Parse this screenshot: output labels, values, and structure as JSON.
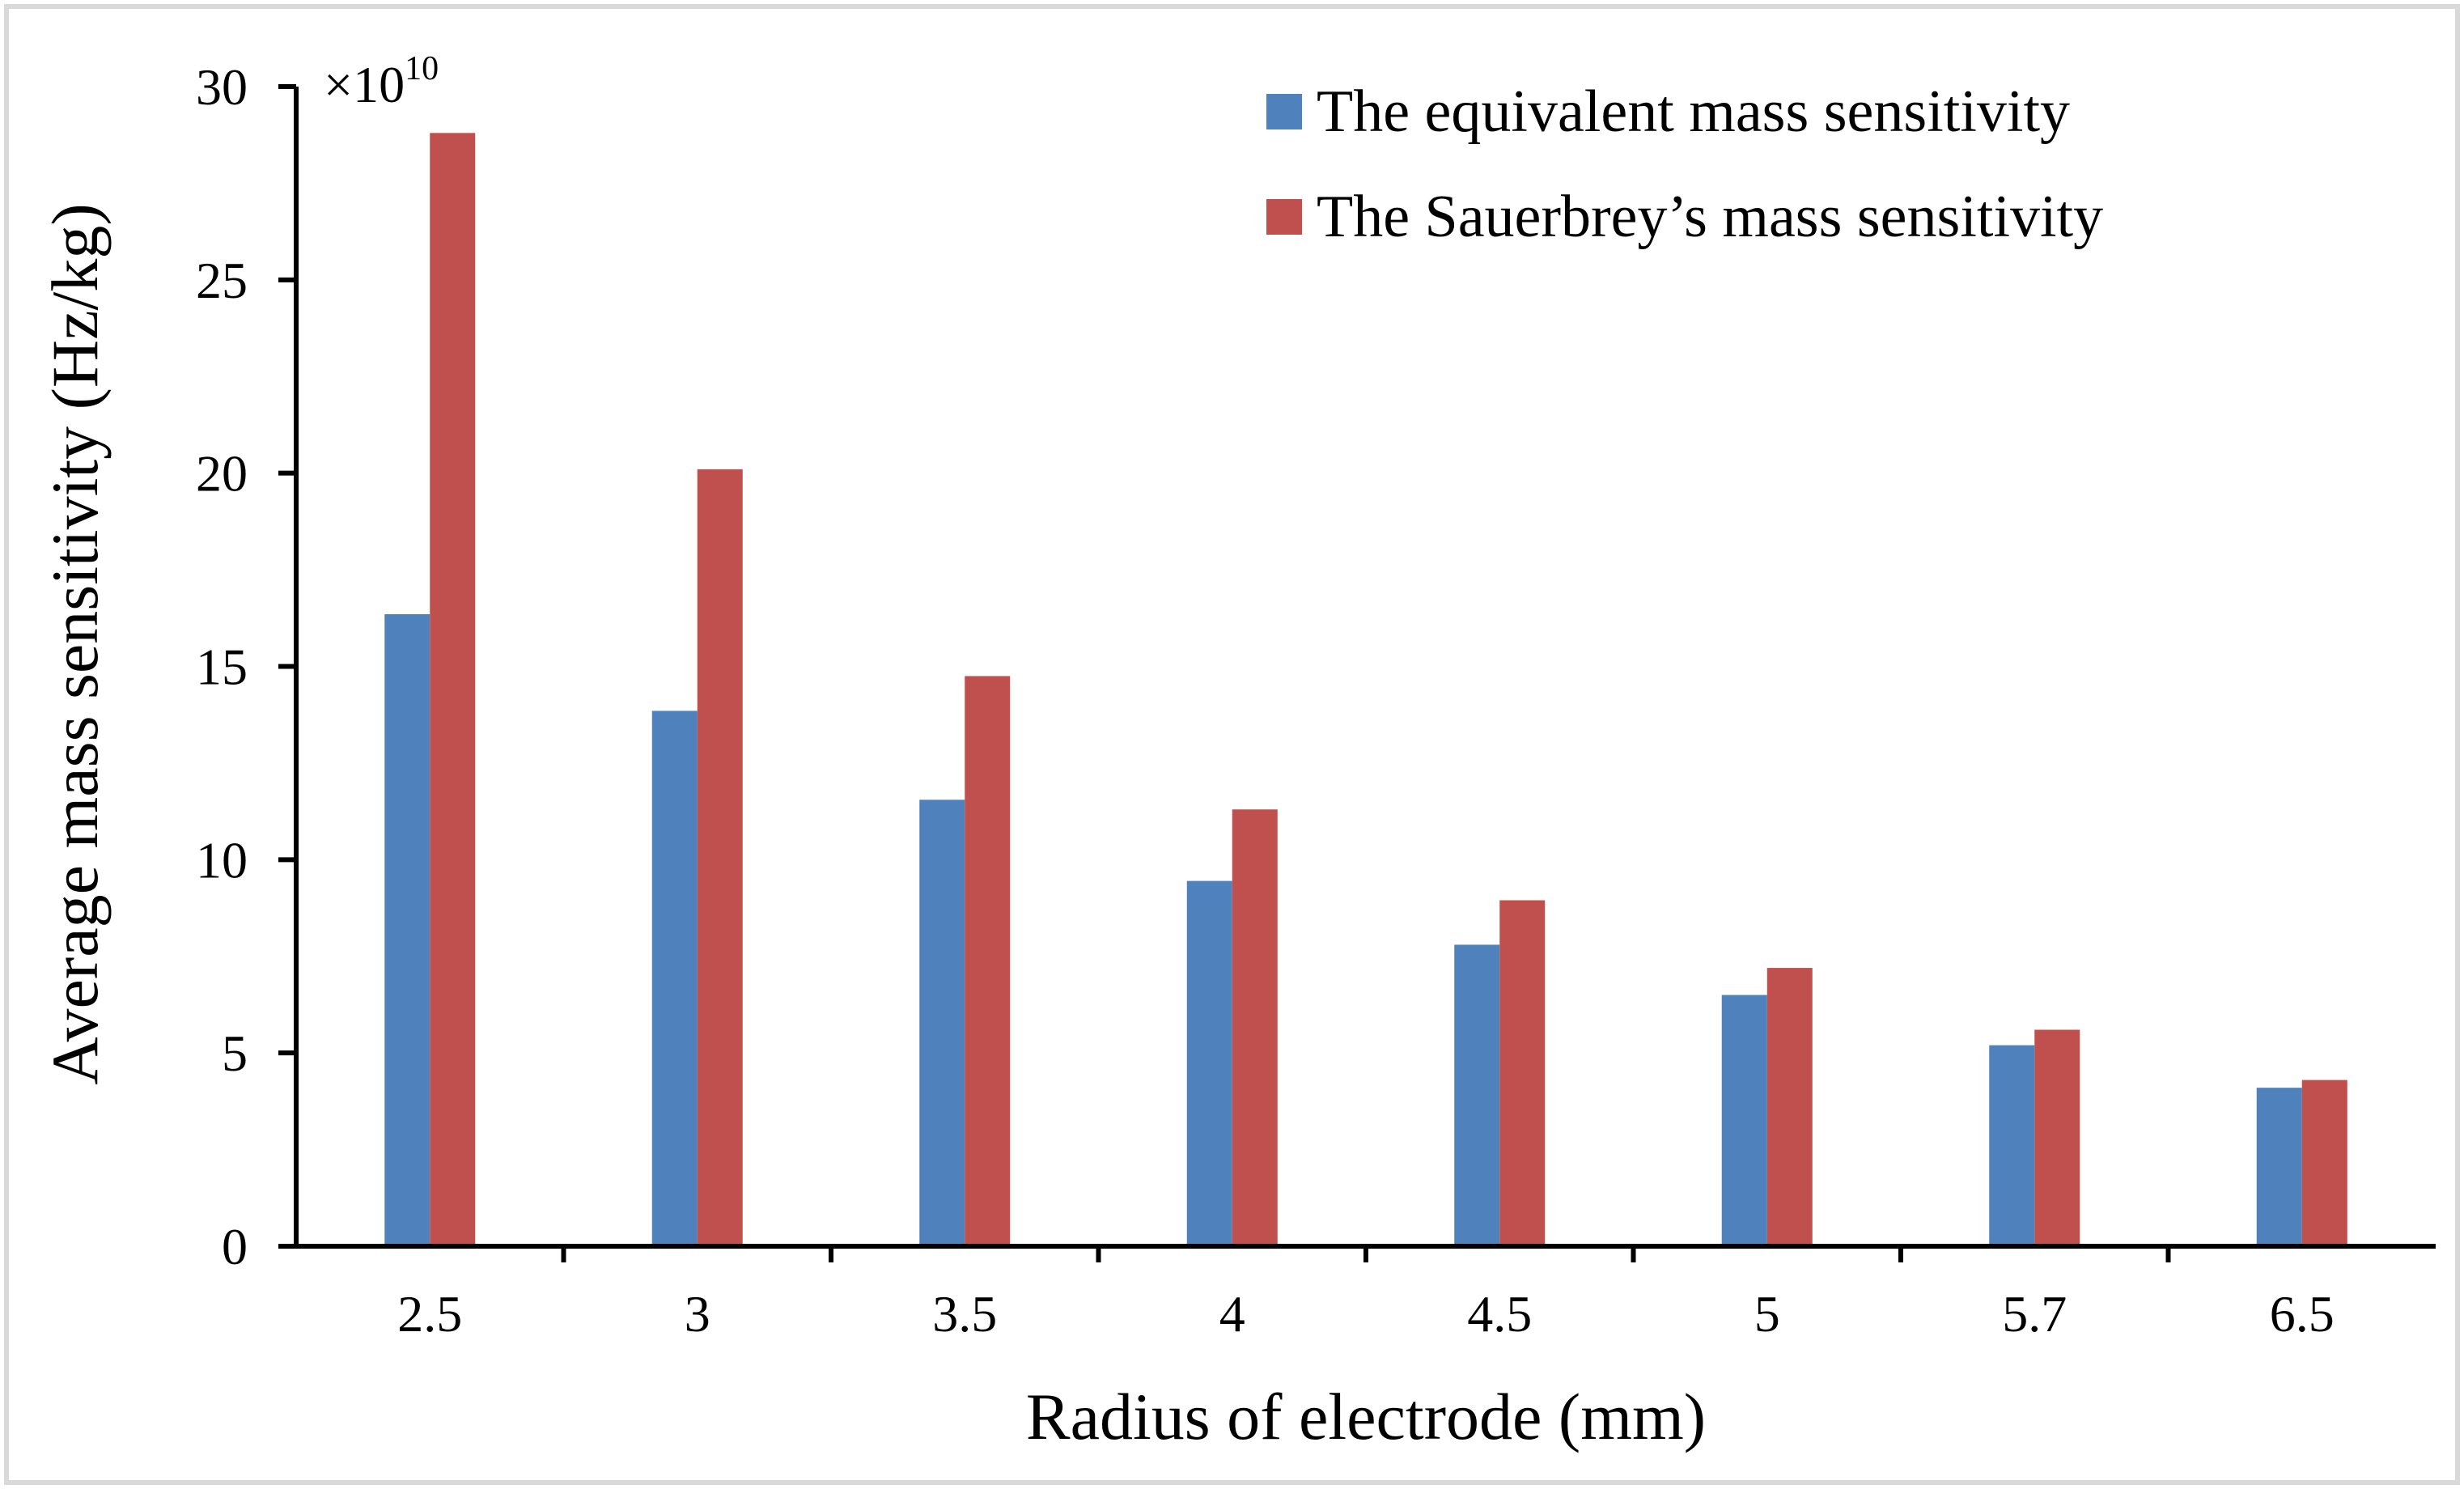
{
  "chart_data": {
    "type": "bar",
    "title": "",
    "xlabel": "Radius of electrode (mm)",
    "ylabel": "Average mass sensitivity (Hz/kg)",
    "scale_prefix": "×10",
    "scale_exponent": "10",
    "categories": [
      "2.5",
      "3",
      "3.5",
      "4",
      "4.5",
      "5",
      "5.7",
      "6.5"
    ],
    "series": [
      {
        "name": "The equivalent mass sensitivity",
        "color": "#4f81bd",
        "values": [
          16.35,
          13.85,
          11.55,
          9.45,
          7.8,
          6.5,
          5.2,
          4.1
        ]
      },
      {
        "name": "The Sauerbrey’s mass sensitivity",
        "color": "#c0504d",
        "values": [
          28.8,
          20.1,
          14.75,
          11.3,
          8.95,
          7.2,
          5.6,
          4.3
        ]
      }
    ],
    "ylim": [
      0,
      30
    ],
    "yticks": [
      "0",
      "5",
      "10",
      "15",
      "20",
      "25",
      "30"
    ],
    "grid": false,
    "legend_position": "top-right"
  }
}
